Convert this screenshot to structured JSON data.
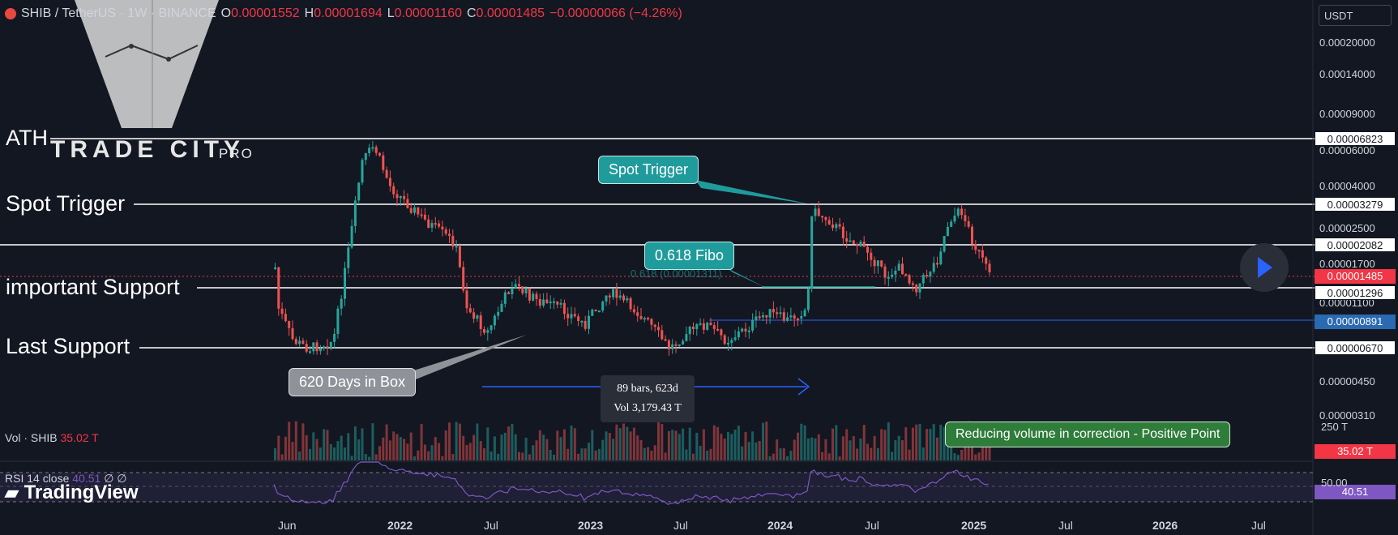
{
  "header": {
    "symbol": "SHIB / TetherUS · 1W · BINANCE",
    "o_label": "O",
    "o_value": "0.00001552",
    "h_label": "H",
    "h_value": "0.00001694",
    "l_label": "L",
    "l_value": "0.00001160",
    "c_label": "C",
    "c_value": "0.00001485",
    "change": "−0.00000066 (−4.26%)"
  },
  "currency_button": "USDT",
  "logo": {
    "name": "TRADE CITY",
    "suffix": "PRO"
  },
  "levels": {
    "ath": {
      "label": "ATH",
      "price": "0.00006823"
    },
    "spot_trigger": {
      "label": "Spot Trigger",
      "price": "0.00003279"
    },
    "mid": {
      "price": "0.00002082"
    },
    "current": {
      "price": "0.00001485"
    },
    "important_support": {
      "label": "important Support",
      "price": "0.00001296"
    },
    "blue_line": {
      "price": "0.00000891"
    },
    "last_support": {
      "label": "Last Support",
      "price": "0.00000670"
    }
  },
  "price_axis": [
    "0.00020000",
    "0.00014000",
    "0.00009000",
    "0.00006000",
    "0.00004000",
    "0.00002500",
    "0.00001700",
    "0.00001100",
    "0.00000450",
    "0.00000310"
  ],
  "callouts": {
    "spot_trigger": "Spot Trigger",
    "fibo": "0.618 Fibo",
    "fibo_level_text": "0.618 (0.00001311)",
    "box_days": "620 Days in Box",
    "volume_note": "Reducing volume in correction - Positive Point"
  },
  "measure": {
    "bars": "89 bars, 623d",
    "vol": "Vol 3,179.43 T"
  },
  "volume": {
    "label": "Vol · SHIB",
    "value": "35.02 T",
    "axis_label": "250 T",
    "tag": "35.02 T"
  },
  "rsi": {
    "label": "RSI 14 close",
    "value": "40.51",
    "extra": "∅ ∅",
    "axis_label": "50.00",
    "tag": "40.51"
  },
  "x_axis": [
    {
      "label": "Jun",
      "bold": false
    },
    {
      "label": "2022",
      "bold": true
    },
    {
      "label": "Jul",
      "bold": false
    },
    {
      "label": "2023",
      "bold": true
    },
    {
      "label": "Jul",
      "bold": false
    },
    {
      "label": "2024",
      "bold": true
    },
    {
      "label": "Jul",
      "bold": false
    },
    {
      "label": "2025",
      "bold": true
    },
    {
      "label": "Jul",
      "bold": false
    },
    {
      "label": "2026",
      "bold": true
    },
    {
      "label": "Jul",
      "bold": false
    }
  ],
  "branding": "TradingView",
  "colors": {
    "up": "#26a69a",
    "down": "#ef5350",
    "background": "#131722",
    "rsi": "#7e57c2",
    "blue_line": "#2962ff"
  }
}
